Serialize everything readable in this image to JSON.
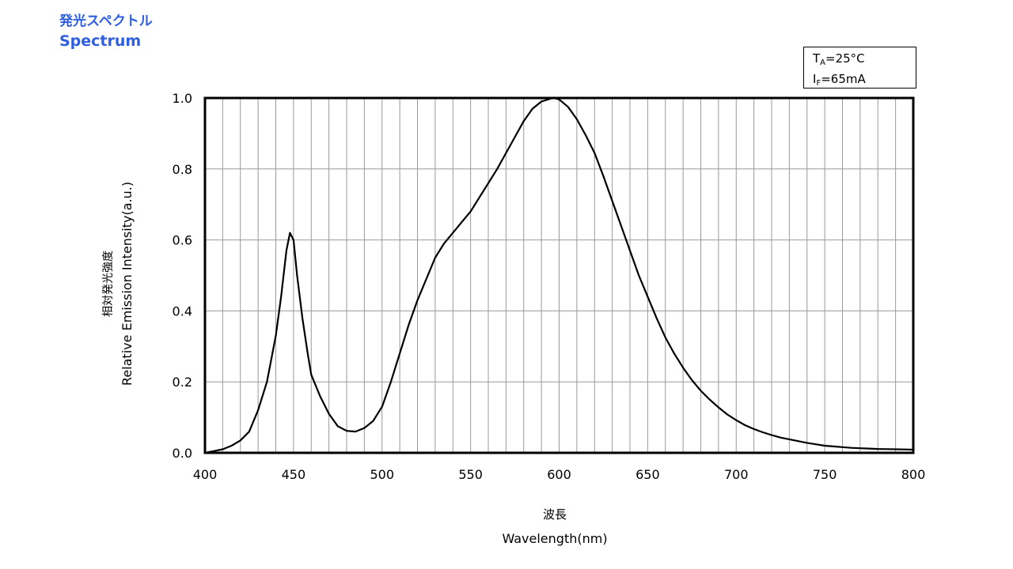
{
  "heading": {
    "jp": "発光スペクトル",
    "en": "Spectrum"
  },
  "conditions": {
    "ta_sym": "T",
    "ta_sub": "A",
    "ta_val": "=25°C",
    "if_sym": "I",
    "if_sub": "F",
    "if_val": "=65mA"
  },
  "chart_data": {
    "type": "line",
    "xlabel_jp": "波長",
    "xlabel": "Wavelength(nm)",
    "ylabel_jp": "相対発光強度",
    "ylabel": "Relative Emission Intensity(a.u.)",
    "xlim": [
      400,
      800
    ],
    "ylim": [
      0,
      1.0
    ],
    "xticks": [
      400,
      450,
      500,
      550,
      600,
      650,
      700,
      750,
      800
    ],
    "xtick_labels": [
      "400",
      "450",
      "500",
      "550",
      "600",
      "650",
      "700",
      "750",
      "800"
    ],
    "yticks": [
      0,
      0.2,
      0.4,
      0.6,
      0.8,
      1.0
    ],
    "ytick_labels": [
      "0.0",
      "0.2",
      "0.4",
      "0.6",
      "0.8",
      "1.0"
    ],
    "x_grid_step": 10,
    "grid": true,
    "line_color": "#000000",
    "grid_color": "#999999",
    "x": [
      400,
      405,
      410,
      415,
      420,
      425,
      430,
      435,
      440,
      443,
      446,
      448,
      450,
      452,
      455,
      458,
      460,
      465,
      470,
      475,
      480,
      485,
      490,
      495,
      500,
      505,
      510,
      515,
      520,
      525,
      530,
      535,
      540,
      545,
      550,
      555,
      560,
      565,
      570,
      575,
      580,
      585,
      590,
      595,
      597,
      600,
      605,
      610,
      615,
      620,
      625,
      630,
      635,
      640,
      645,
      650,
      655,
      660,
      665,
      670,
      675,
      680,
      685,
      690,
      695,
      700,
      705,
      710,
      715,
      720,
      725,
      730,
      735,
      740,
      745,
      750,
      755,
      760,
      765,
      770,
      775,
      780,
      785,
      790,
      795,
      800
    ],
    "y": [
      0.0,
      0.005,
      0.01,
      0.02,
      0.035,
      0.06,
      0.12,
      0.2,
      0.33,
      0.44,
      0.57,
      0.62,
      0.6,
      0.5,
      0.38,
      0.28,
      0.22,
      0.16,
      0.11,
      0.075,
      0.062,
      0.06,
      0.07,
      0.09,
      0.13,
      0.2,
      0.28,
      0.36,
      0.43,
      0.49,
      0.55,
      0.59,
      0.62,
      0.65,
      0.68,
      0.72,
      0.76,
      0.8,
      0.845,
      0.89,
      0.935,
      0.97,
      0.99,
      0.998,
      1.0,
      0.996,
      0.975,
      0.94,
      0.895,
      0.845,
      0.78,
      0.71,
      0.64,
      0.57,
      0.5,
      0.44,
      0.38,
      0.325,
      0.28,
      0.24,
      0.205,
      0.175,
      0.15,
      0.128,
      0.108,
      0.092,
      0.078,
      0.067,
      0.058,
      0.05,
      0.043,
      0.038,
      0.033,
      0.028,
      0.024,
      0.02,
      0.018,
      0.016,
      0.014,
      0.013,
      0.012,
      0.011,
      0.0105,
      0.01,
      0.0095,
      0.009
    ]
  }
}
